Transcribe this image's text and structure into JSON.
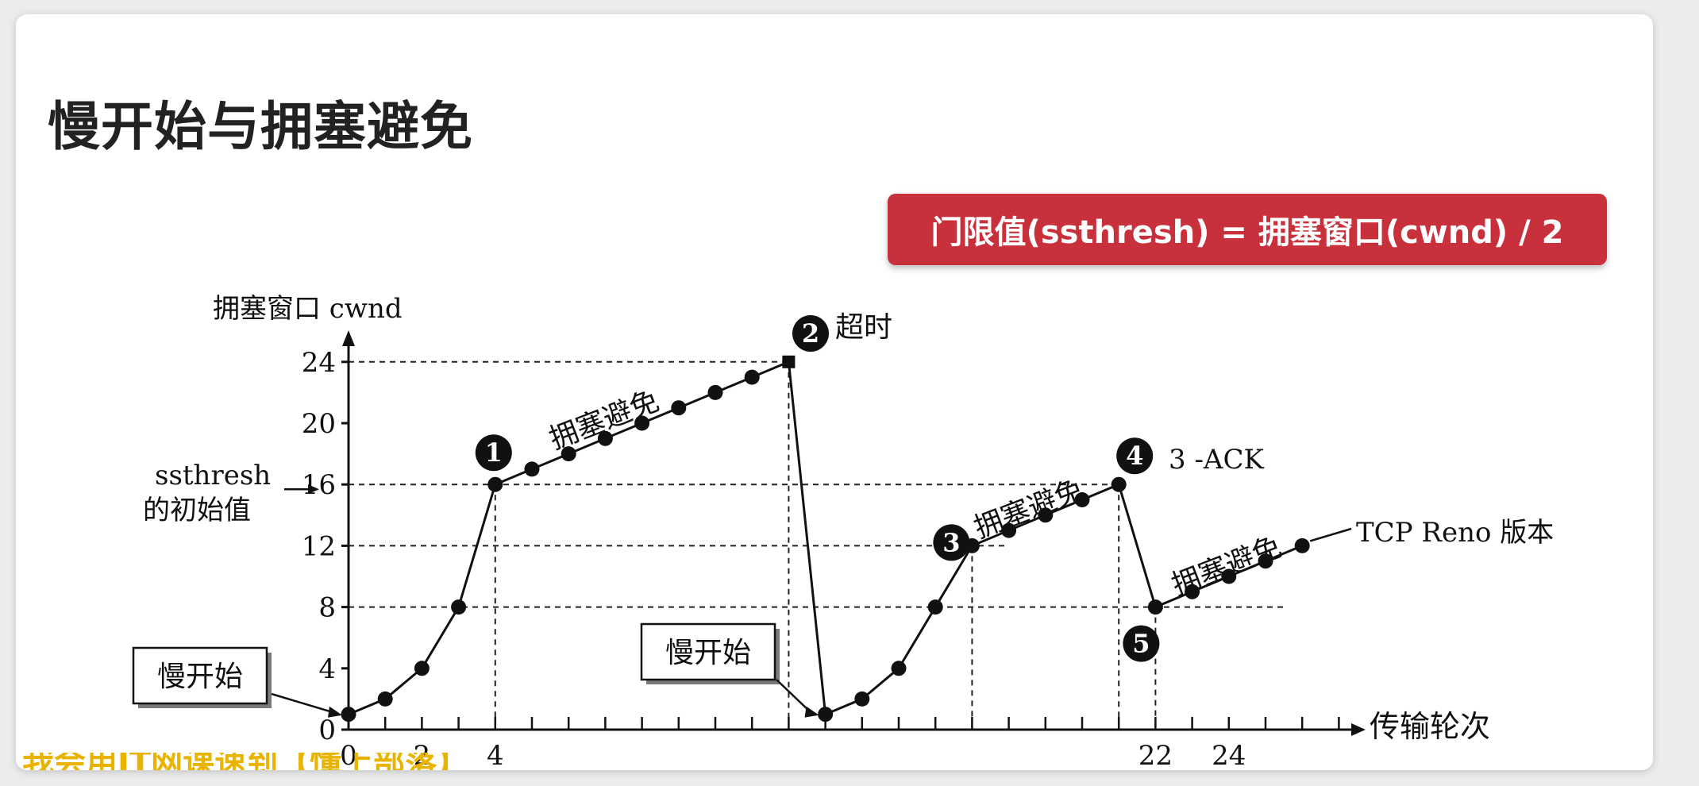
{
  "slide": {
    "title": "慢开始与拥塞避免",
    "formula": "门限值(ssthresh) = 拥塞窗口(cwnd) / 2",
    "subtitle_text": "我会用IT网课速到【懂上部落】"
  },
  "diagram": {
    "y_axis_label": "拥塞窗口  cwnd",
    "x_axis_label": "传输轮次",
    "y_ticks": [
      "0",
      "4",
      "8",
      "12",
      "16",
      "20",
      "24"
    ],
    "x_ticks": [
      "0",
      "2",
      "4",
      "22",
      "24"
    ],
    "ssthresh_label_line1": "ssthresh",
    "ssthresh_label_line2": "的初始值",
    "slow_start_label_1": "慢开始",
    "slow_start_label_2": "慢开始",
    "ca_label_1": "拥塞避免",
    "ca_label_2": "拥塞避免",
    "ca_label_3": "拥塞避免",
    "marker_1": "1",
    "marker_2": "2",
    "marker_2_text": "超时",
    "marker_3": "3",
    "marker_4": "4",
    "marker_4_text": "3 -ACK",
    "marker_5": "5",
    "tcp_reno_label": "TCP Reno 版本"
  },
  "chart_data": {
    "type": "line",
    "xlabel": "传输轮次",
    "ylabel": "拥塞窗口  cwnd",
    "ylim": [
      0,
      24
    ],
    "series": [
      {
        "x": [
          0,
          1,
          2,
          3,
          4,
          5,
          6,
          7,
          8,
          9,
          10,
          11,
          12,
          13,
          14,
          15,
          16,
          17,
          18,
          19,
          20,
          21,
          22,
          23,
          24,
          25,
          26
        ],
        "y": [
          1,
          2,
          4,
          8,
          16,
          17,
          18,
          19,
          20,
          21,
          22,
          23,
          24,
          1,
          2,
          4,
          8,
          12,
          13,
          14,
          15,
          16,
          8,
          9,
          10,
          11,
          12
        ]
      }
    ]
  }
}
